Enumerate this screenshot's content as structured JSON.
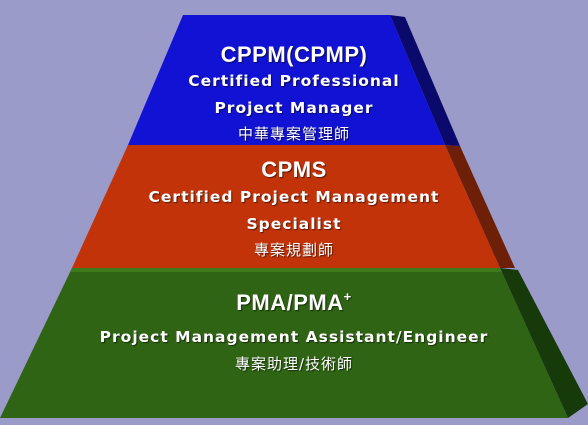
{
  "tiers": [
    {
      "code": "CPPM(CPMP)",
      "title_line1": "Certified Professional",
      "title_line2": "Project Manager",
      "chinese": "中華專案管理師",
      "colors": {
        "front": "#1212d4",
        "side": "#0a0a6c",
        "top": "#2525e6"
      }
    },
    {
      "code": "CPMS",
      "title_line1": "Certified Project Management",
      "title_line2": "Specialist",
      "chinese": "專案規劃師",
      "colors": {
        "front": "#c2330a",
        "side": "#6d1f08",
        "top": "#d04416"
      }
    },
    {
      "code": "PMA/PMA",
      "code_superscript": "+",
      "title_line1": "Project Management Assistant/Engineer",
      "chinese": "專案助理/技術師",
      "colors": {
        "front": "#2f6414",
        "side": "#163a0a",
        "top": "#3d7a1c"
      }
    }
  ]
}
